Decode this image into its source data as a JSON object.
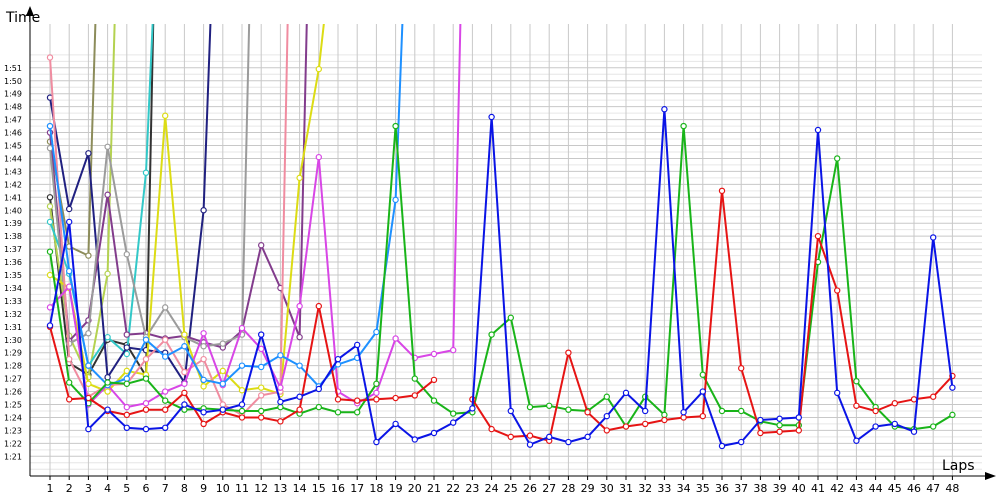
{
  "chart_data": {
    "type": "line",
    "ylabel": "Time",
    "xlabel": "Laps",
    "x": [
      1,
      2,
      3,
      4,
      5,
      6,
      7,
      8,
      9,
      10,
      11,
      12,
      13,
      14,
      15,
      16,
      17,
      18,
      19,
      20,
      21,
      22,
      23,
      24,
      25,
      26,
      27,
      28,
      29,
      30,
      31,
      32,
      33,
      34,
      35,
      36,
      37,
      38,
      39,
      40,
      41,
      42,
      43,
      44,
      45,
      46,
      47,
      48
    ],
    "yticks": [
      {
        "v": 81,
        "label": "1:21"
      },
      {
        "v": 82,
        "label": "1:22"
      },
      {
        "v": 83,
        "label": "1:23"
      },
      {
        "v": 84,
        "label": "1:24"
      },
      {
        "v": 85,
        "label": "1:25"
      },
      {
        "v": 86,
        "label": "1:26"
      },
      {
        "v": 87,
        "label": "1:27"
      },
      {
        "v": 88,
        "label": "1:28"
      },
      {
        "v": 89,
        "label": "1:29"
      },
      {
        "v": 90,
        "label": "1:30"
      },
      {
        "v": 91,
        "label": "1:31"
      },
      {
        "v": 92,
        "label": "1:32"
      },
      {
        "v": 93,
        "label": "1:33"
      },
      {
        "v": 94,
        "label": "1:34"
      },
      {
        "v": 95,
        "label": "1:35"
      },
      {
        "v": 96,
        "label": "1:36"
      },
      {
        "v": 97,
        "label": "1:37"
      },
      {
        "v": 98,
        "label": "1:38"
      },
      {
        "v": 99,
        "label": "1:39"
      },
      {
        "v": 100,
        "label": "1:40"
      },
      {
        "v": 101,
        "label": "1:41"
      },
      {
        "v": 102,
        "label": "1:42"
      },
      {
        "v": 103,
        "label": "1:43"
      },
      {
        "v": 104,
        "label": "1:44"
      },
      {
        "v": 105,
        "label": "1:45"
      },
      {
        "v": 106,
        "label": "1:46"
      },
      {
        "v": 107,
        "label": "1:47"
      },
      {
        "v": 108,
        "label": "1:48"
      },
      {
        "v": 109,
        "label": "1:49"
      },
      {
        "v": 110,
        "label": "1:50"
      },
      {
        "v": 111,
        "label": "1:51"
      }
    ],
    "ylim": [
      80,
      113
    ],
    "grid": true,
    "series": [
      {
        "color": "#0a14e6",
        "values": [
          91.1,
          99.1,
          83.1,
          84.6,
          83.2,
          83.1,
          83.2,
          85.0,
          84.4,
          84.6,
          85.0,
          90.4,
          85.2,
          85.6,
          86.2,
          88.5,
          89.6,
          82.1,
          83.5,
          82.3,
          82.8,
          83.6,
          84.7,
          107.2,
          84.5,
          81.9,
          82.5,
          82.1,
          82.5,
          84.1,
          85.9,
          84.5,
          107.8,
          84.4,
          86.0,
          81.8,
          82.1,
          83.8,
          83.9,
          84.0,
          106.2,
          85.9,
          82.2,
          83.3,
          83.5,
          82.9,
          97.9,
          86.3
        ]
      },
      {
        "color": "#e61414",
        "values": [
          91.0,
          85.4,
          85.5,
          84.5,
          84.2,
          84.6,
          84.6,
          85.9,
          83.5,
          84.4,
          84.0,
          84.0,
          83.7,
          84.6,
          92.6,
          85.4,
          85.3,
          85.4,
          85.5,
          85.7,
          86.9,
          null,
          85.4,
          83.1,
          82.5,
          82.6,
          82.2,
          89.0,
          84.4,
          83.0,
          83.3,
          83.5,
          83.8,
          84.0,
          84.1,
          101.5,
          87.8,
          82.8,
          82.9,
          83.0,
          98.0,
          93.8,
          84.9,
          84.5,
          85.1,
          85.4,
          85.6,
          87.2
        ]
      },
      {
        "color": "#19b419",
        "values": [
          96.8,
          86.7,
          85.1,
          86.7,
          86.6,
          87.0,
          85.3,
          84.6,
          84.7,
          84.6,
          84.5,
          84.5,
          84.8,
          84.3,
          84.8,
          84.4,
          84.4,
          86.6,
          106.5,
          87.0,
          85.3,
          84.3,
          84.4,
          90.4,
          91.7,
          84.8,
          84.9,
          84.6,
          84.5,
          85.6,
          83.3,
          85.6,
          84.2,
          106.5,
          87.3,
          84.5,
          84.5,
          83.7,
          83.4,
          83.4,
          96.0,
          104.0,
          86.8,
          84.8,
          83.3,
          83.1,
          83.3,
          84.2
        ]
      },
      {
        "color": "#1e90ff",
        "values": [
          106.5,
          95.3,
          88.0,
          86.5,
          87.0,
          90.0,
          88.7,
          89.5,
          86.9,
          86.6,
          88.0,
          87.9,
          88.8,
          88.0,
          86.4,
          88.1,
          88.6,
          90.6,
          100.8,
          null,
          null,
          null,
          null,
          null,
          null,
          null,
          null,
          null,
          null,
          null,
          null,
          null,
          null,
          null,
          null,
          null,
          null,
          null,
          null,
          null,
          null,
          null,
          null,
          null,
          null,
          null,
          null,
          null
        ]
      },
      {
        "color": "#d846e6",
        "values": [
          92.5,
          94.1,
          85.0,
          86.5,
          84.8,
          85.1,
          86.0,
          86.6,
          90.5,
          86.5,
          90.9,
          89.3,
          86.3,
          92.6,
          104.1,
          86.0,
          85.1,
          85.9,
          90.1,
          88.6,
          88.9,
          89.2,
          null,
          null,
          null,
          null,
          null,
          null,
          null,
          null,
          null,
          null,
          null,
          null,
          null,
          null,
          null,
          null,
          null,
          null,
          null,
          null,
          null,
          null,
          null,
          null,
          null,
          null
        ]
      },
      {
        "color": "#f08ca0",
        "values": [
          111.8,
          88.5,
          85.6,
          86.5,
          86.6,
          88.5,
          90.0,
          87.5,
          88.5,
          85.0,
          84.2,
          85.7,
          86.0,
          null,
          null,
          null,
          null,
          null,
          null,
          null,
          null,
          null,
          null,
          null,
          null,
          null,
          null,
          null,
          null,
          null,
          null,
          null,
          null,
          null,
          null,
          null,
          null,
          null,
          null,
          null,
          null,
          null,
          null,
          null,
          null,
          null,
          null,
          null
        ]
      },
      {
        "color": "#dcdc14",
        "values": [
          95.0,
          94.0,
          86.6,
          86.0,
          87.6,
          87.3,
          107.3,
          90.4,
          86.4,
          87.6,
          86.1,
          86.3,
          85.8,
          102.5,
          110.9,
          null,
          null,
          null,
          null,
          null,
          null,
          null,
          null,
          null,
          null,
          null,
          null,
          null,
          null,
          null,
          null,
          null,
          null,
          null,
          null,
          null,
          null,
          null,
          null,
          null,
          null,
          null,
          null,
          null,
          null,
          null,
          null,
          null
        ]
      },
      {
        "color": "#9b9b9b",
        "values": [
          104.8,
          89.7,
          90.5,
          104.9,
          96.6,
          90.2,
          92.5,
          90.2,
          89.5,
          89.7,
          90.4,
          null,
          null,
          null,
          null,
          null,
          null,
          null,
          null,
          null,
          null,
          null,
          null,
          null,
          null,
          null,
          null,
          null,
          null,
          null,
          null,
          null,
          null,
          null,
          null,
          null,
          null,
          null,
          null,
          null,
          null,
          null,
          null,
          null,
          null,
          null,
          null,
          null
        ]
      },
      {
        "color": "#823c8c",
        "values": [
          106.0,
          89.9,
          91.5,
          101.2,
          90.4,
          90.5,
          90.1,
          90.3,
          89.8,
          89.4,
          90.7,
          97.3,
          94.0,
          90.2,
          null,
          null,
          null,
          null,
          null,
          null,
          null,
          null,
          null,
          null,
          null,
          null,
          null,
          null,
          null,
          null,
          null,
          null,
          null,
          null,
          null,
          null,
          null,
          null,
          null,
          null,
          null,
          null,
          null,
          null,
          null,
          null,
          null,
          null
        ]
      },
      {
        "color": "#202080",
        "values": [
          108.7,
          100.1,
          104.4,
          87.1,
          89.4,
          89.2,
          89.0,
          86.7,
          100.0,
          null,
          null,
          null,
          null,
          null,
          null,
          null,
          null,
          null,
          null,
          null,
          null,
          null,
          null,
          null,
          null,
          null,
          null,
          null,
          null,
          null,
          null,
          null,
          null,
          null,
          null,
          null,
          null,
          null,
          null,
          null,
          null,
          null,
          null,
          null,
          null,
          null,
          null,
          null
        ]
      },
      {
        "color": "#32c8c8",
        "values": [
          99.1,
          95.1,
          88.0,
          90.2,
          88.9,
          102.9,
          null,
          null,
          null,
          null,
          null,
          null,
          null,
          null,
          null,
          null,
          null,
          null,
          null,
          null,
          null,
          null,
          null,
          null,
          null,
          null,
          null,
          null,
          null,
          null,
          null,
          null,
          null,
          null,
          null,
          null,
          null,
          null,
          null,
          null,
          null,
          null,
          null,
          null,
          null,
          null,
          null,
          null
        ]
      },
      {
        "color": "#8c8c5a",
        "values": [
          105.3,
          97.2,
          96.5,
          null,
          null,
          null,
          null,
          null,
          null,
          null,
          null,
          null,
          null,
          null,
          null,
          null,
          null,
          null,
          null,
          null,
          null,
          null,
          null,
          null,
          null,
          null,
          null,
          null,
          null,
          null,
          null,
          null,
          null,
          null,
          null,
          null,
          null,
          null,
          null,
          null,
          null,
          null,
          null,
          null,
          null,
          null,
          null,
          null
        ]
      },
      {
        "color": "#b4d250",
        "values": [
          100.3,
          90.3,
          87.1,
          95.1,
          null,
          null,
          null,
          null,
          null,
          null,
          null,
          null,
          null,
          null,
          null,
          null,
          null,
          null,
          null,
          null,
          null,
          null,
          null,
          null,
          null,
          null,
          null,
          null,
          null,
          null,
          null,
          null,
          null,
          null,
          null,
          null,
          null,
          null,
          null,
          null,
          null,
          null,
          null,
          null,
          null,
          null,
          null,
          null
        ]
      },
      {
        "color": "#323232",
        "values": [
          101.0,
          88.2,
          87.3,
          90.0,
          89.6,
          87.2,
          null,
          null,
          null,
          null,
          null,
          null,
          null,
          null,
          null,
          null,
          null,
          null,
          null,
          null,
          null,
          null,
          null,
          null,
          null,
          null,
          null,
          null,
          null,
          null,
          null,
          null,
          null,
          null,
          null,
          null,
          null,
          null,
          null,
          null,
          null,
          null,
          null,
          null,
          null,
          null,
          null,
          null
        ]
      }
    ]
  }
}
